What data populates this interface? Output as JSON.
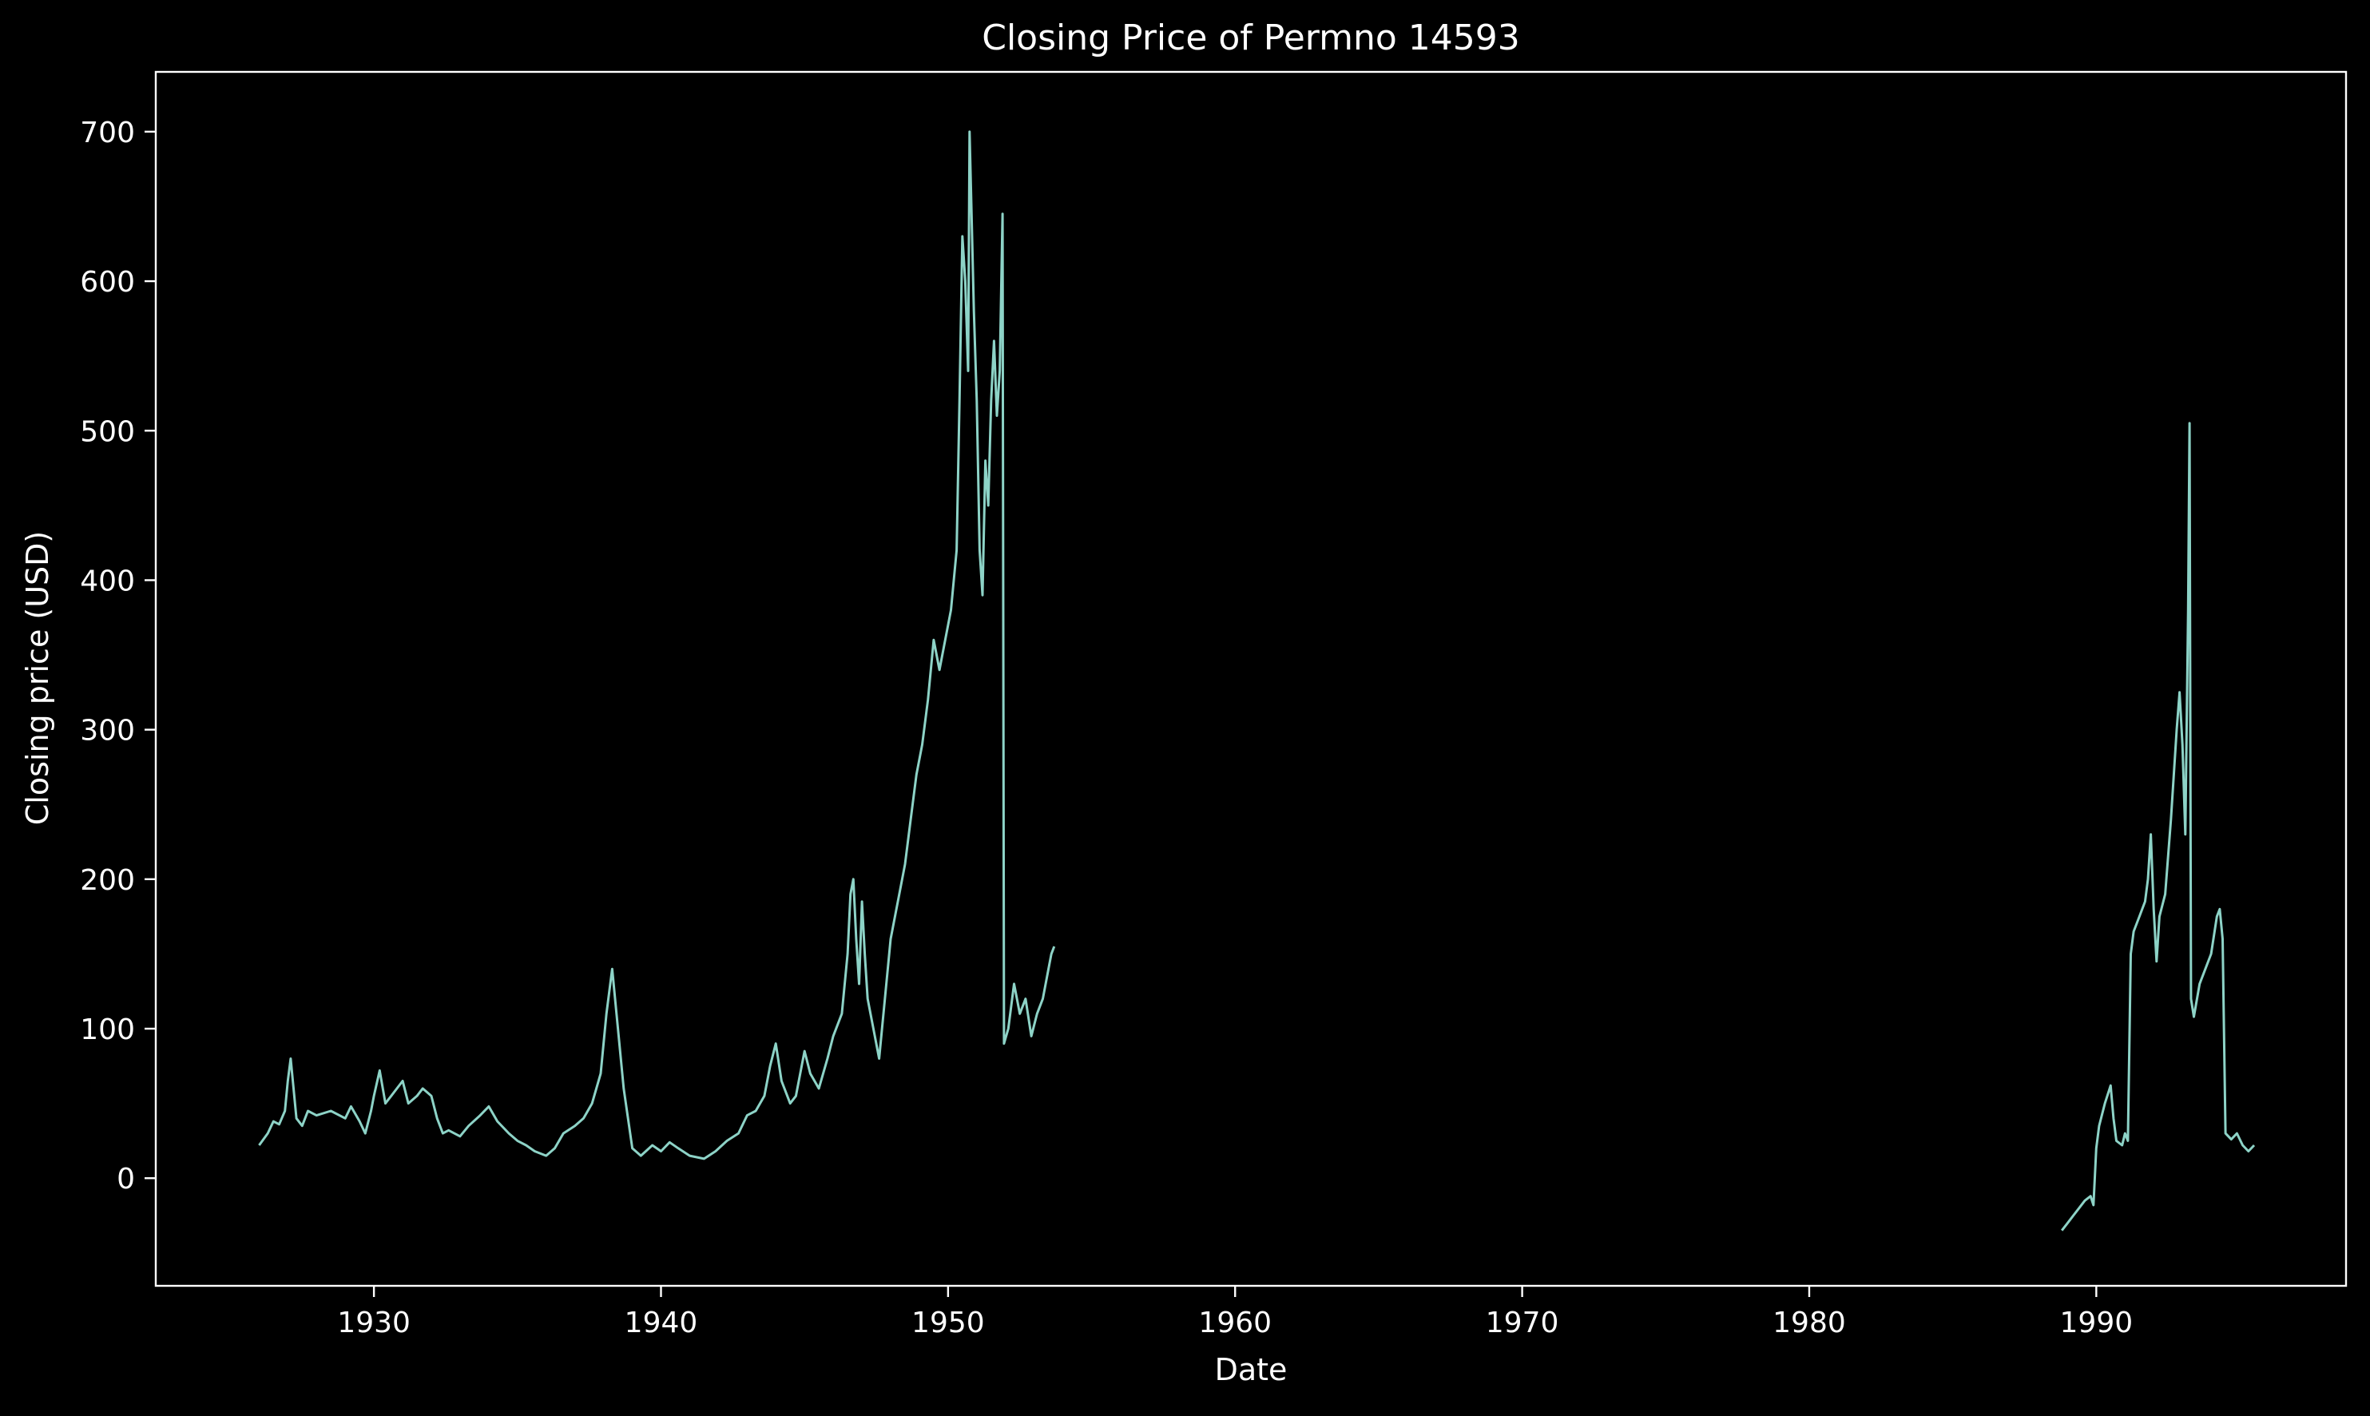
{
  "chart_data": {
    "type": "line",
    "title": "Closing Price of Permno 14593",
    "xlabel": "Date",
    "ylabel": "Closing price (USD)",
    "xlim": [
      1922.4,
      1998.7
    ],
    "ylim": [
      -72,
      740
    ],
    "x_ticks": [
      1930,
      1940,
      1950,
      1960,
      1970,
      1980,
      1990
    ],
    "y_ticks": [
      0,
      100,
      200,
      300,
      400,
      500,
      600,
      700
    ],
    "grid": false,
    "legend": "none",
    "colors": {
      "background": "#000000",
      "axes": "#ffffff",
      "text": "#ffffff",
      "line": "#8dd3c7"
    },
    "series": [
      {
        "segments": [
          [
            [
              1926.0,
              22
            ],
            [
              1926.3,
              30
            ],
            [
              1926.5,
              38
            ],
            [
              1926.7,
              36
            ],
            [
              1926.9,
              45
            ],
            [
              1927.0,
              65
            ],
            [
              1927.1,
              80
            ],
            [
              1927.2,
              60
            ],
            [
              1927.3,
              40
            ],
            [
              1927.5,
              35
            ],
            [
              1927.7,
              45
            ],
            [
              1928.0,
              42
            ],
            [
              1928.5,
              45
            ],
            [
              1929.0,
              40
            ],
            [
              1929.2,
              48
            ],
            [
              1929.5,
              38
            ],
            [
              1929.7,
              30
            ],
            [
              1929.9,
              45
            ],
            [
              1930.0,
              55
            ],
            [
              1930.2,
              72
            ],
            [
              1930.4,
              50
            ],
            [
              1930.6,
              55
            ],
            [
              1930.8,
              60
            ],
            [
              1931.0,
              65
            ],
            [
              1931.2,
              50
            ],
            [
              1931.5,
              55
            ],
            [
              1931.7,
              60
            ],
            [
              1932.0,
              55
            ],
            [
              1932.2,
              40
            ],
            [
              1932.4,
              30
            ],
            [
              1932.6,
              32
            ],
            [
              1933.0,
              28
            ],
            [
              1933.3,
              35
            ],
            [
              1933.7,
              42
            ],
            [
              1934.0,
              48
            ],
            [
              1934.3,
              38
            ],
            [
              1934.7,
              30
            ],
            [
              1935.0,
              25
            ],
            [
              1935.3,
              22
            ],
            [
              1935.6,
              18
            ],
            [
              1936.0,
              15
            ],
            [
              1936.3,
              20
            ],
            [
              1936.6,
              30
            ],
            [
              1937.0,
              35
            ],
            [
              1937.3,
              40
            ],
            [
              1937.6,
              50
            ],
            [
              1937.9,
              70
            ],
            [
              1938.1,
              110
            ],
            [
              1938.3,
              140
            ],
            [
              1938.5,
              100
            ],
            [
              1938.7,
              60
            ],
            [
              1939.0,
              20
            ],
            [
              1939.3,
              15
            ],
            [
              1939.7,
              22
            ],
            [
              1940.0,
              18
            ],
            [
              1940.3,
              24
            ],
            [
              1940.6,
              20
            ],
            [
              1941.0,
              15
            ],
            [
              1941.5,
              13
            ],
            [
              1941.9,
              18
            ],
            [
              1942.3,
              25
            ],
            [
              1942.7,
              30
            ],
            [
              1943.0,
              42
            ],
            [
              1943.3,
              45
            ],
            [
              1943.6,
              55
            ],
            [
              1943.8,
              75
            ],
            [
              1944.0,
              90
            ],
            [
              1944.2,
              65
            ],
            [
              1944.5,
              50
            ],
            [
              1944.7,
              55
            ],
            [
              1945.0,
              85
            ],
            [
              1945.2,
              70
            ],
            [
              1945.5,
              60
            ],
            [
              1945.8,
              80
            ],
            [
              1946.0,
              95
            ],
            [
              1946.3,
              110
            ],
            [
              1946.5,
              150
            ],
            [
              1946.6,
              190
            ],
            [
              1946.7,
              200
            ],
            [
              1946.8,
              160
            ],
            [
              1946.9,
              130
            ],
            [
              1947.0,
              185
            ],
            [
              1947.1,
              150
            ],
            [
              1947.2,
              120
            ],
            [
              1947.4,
              100
            ],
            [
              1947.6,
              80
            ],
            [
              1947.8,
              120
            ],
            [
              1948.0,
              160
            ],
            [
              1948.3,
              190
            ],
            [
              1948.5,
              210
            ],
            [
              1948.7,
              240
            ],
            [
              1948.9,
              270
            ],
            [
              1949.1,
              290
            ],
            [
              1949.3,
              320
            ],
            [
              1949.5,
              360
            ],
            [
              1949.7,
              340
            ],
            [
              1949.9,
              360
            ],
            [
              1950.1,
              380
            ],
            [
              1950.3,
              420
            ],
            [
              1950.4,
              520
            ],
            [
              1950.5,
              630
            ],
            [
              1950.6,
              600
            ],
            [
              1950.7,
              540
            ],
            [
              1950.75,
              700
            ],
            [
              1950.9,
              580
            ],
            [
              1951.0,
              520
            ],
            [
              1951.1,
              420
            ],
            [
              1951.2,
              390
            ],
            [
              1951.3,
              480
            ],
            [
              1951.4,
              450
            ],
            [
              1951.5,
              520
            ],
            [
              1951.6,
              560
            ],
            [
              1951.7,
              510
            ],
            [
              1951.8,
              540
            ],
            [
              1951.9,
              645
            ],
            [
              1951.95,
              90
            ],
            [
              1952.1,
              100
            ],
            [
              1952.3,
              130
            ],
            [
              1952.5,
              110
            ],
            [
              1952.7,
              120
            ],
            [
              1952.9,
              95
            ],
            [
              1953.1,
              110
            ],
            [
              1953.3,
              120
            ],
            [
              1953.5,
              140
            ],
            [
              1953.6,
              150
            ],
            [
              1953.7,
              155
            ]
          ],
          [
            [
              1988.8,
              -35
            ],
            [
              1989.0,
              -30
            ],
            [
              1989.2,
              -25
            ],
            [
              1989.4,
              -20
            ],
            [
              1989.6,
              -15
            ],
            [
              1989.8,
              -12
            ],
            [
              1989.9,
              -18
            ],
            [
              1990.0,
              20
            ],
            [
              1990.1,
              35
            ],
            [
              1990.3,
              50
            ],
            [
              1990.5,
              62
            ],
            [
              1990.6,
              40
            ],
            [
              1990.7,
              25
            ],
            [
              1990.9,
              22
            ],
            [
              1991.0,
              30
            ],
            [
              1991.1,
              25
            ],
            [
              1991.2,
              150
            ],
            [
              1991.3,
              165
            ],
            [
              1991.5,
              175
            ],
            [
              1991.7,
              185
            ],
            [
              1991.8,
              200
            ],
            [
              1991.9,
              230
            ],
            [
              1992.0,
              180
            ],
            [
              1992.1,
              145
            ],
            [
              1992.2,
              175
            ],
            [
              1992.4,
              190
            ],
            [
              1992.6,
              240
            ],
            [
              1992.8,
              300
            ],
            [
              1992.9,
              325
            ],
            [
              1993.0,
              290
            ],
            [
              1993.1,
              230
            ],
            [
              1993.2,
              380
            ],
            [
              1993.25,
              505
            ],
            [
              1993.3,
              120
            ],
            [
              1993.4,
              108
            ],
            [
              1993.6,
              130
            ],
            [
              1993.8,
              140
            ],
            [
              1994.0,
              150
            ],
            [
              1994.2,
              175
            ],
            [
              1994.3,
              180
            ],
            [
              1994.4,
              160
            ],
            [
              1994.5,
              30
            ],
            [
              1994.7,
              26
            ],
            [
              1994.9,
              30
            ],
            [
              1995.1,
              22
            ],
            [
              1995.3,
              18
            ],
            [
              1995.5,
              22
            ]
          ]
        ]
      }
    ]
  }
}
